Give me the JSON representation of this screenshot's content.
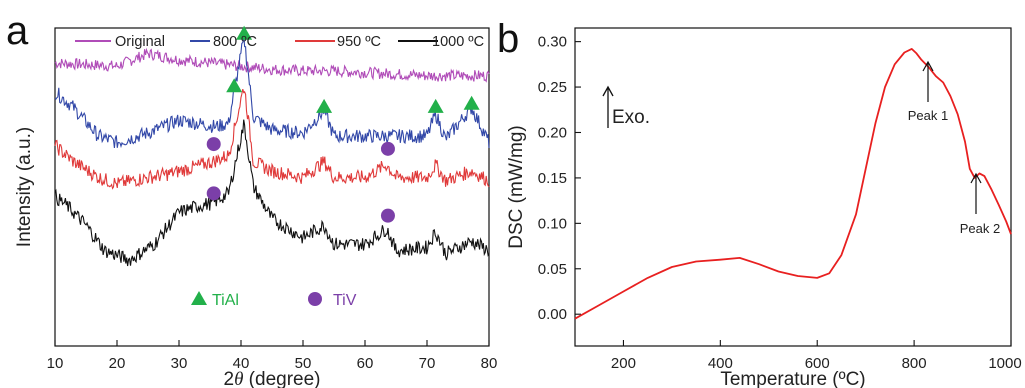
{
  "panels": {
    "a": {
      "panel_letter": "a",
      "xlabel_prefix": "2",
      "xlabel_theta": "θ",
      "xlabel_suffix": " (degree)",
      "ylabel": "Intensity  (a.u.)",
      "marker_legend": {
        "tial": "TiAl",
        "tiv": "TiV"
      },
      "colors": {
        "original": "#b04cb8",
        "800": "#3248a8",
        "950": "#e03a3a",
        "1000": "#111111",
        "tial_marker": "#22b04a",
        "tiv_marker": "#7b3fa8",
        "tial_text": "#22b04a",
        "tiv_text": "#7b3fa8"
      }
    },
    "b": {
      "panel_letter": "b",
      "exo_label": "Exo.",
      "peak1_label": "Peak 1",
      "peak2_label": "Peak 2",
      "colors": {
        "curve": "#e82020"
      }
    }
  },
  "chart_data": [
    {
      "type": "line",
      "title": "",
      "xlabel": "2θ (degree)",
      "ylabel": "Intensity  (a.u.)",
      "xlim": [
        10,
        80
      ],
      "x_ticks": [
        10,
        20,
        30,
        40,
        50,
        60,
        70,
        80
      ],
      "y_ticks": [],
      "grid": false,
      "legend_position": "top",
      "series": [
        {
          "name": "Original",
          "color": "#b04cb8",
          "offset": 0.86,
          "x": [
            10,
            20,
            25,
            30,
            35,
            40,
            45,
            50,
            55,
            60,
            65,
            70,
            75,
            80
          ],
          "y": [
            0.89,
            0.88,
            0.92,
            0.9,
            0.89,
            0.88,
            0.87,
            0.865,
            0.865,
            0.86,
            0.855,
            0.85,
            0.85,
            0.85
          ]
        },
        {
          "name": "800 ºC",
          "color": "#3248a8",
          "offset": 0.67,
          "x": [
            10,
            13,
            17,
            20,
            25,
            30,
            33,
            36,
            38,
            38.9,
            40.5,
            42,
            45,
            50,
            53.4,
            55,
            60,
            65,
            70,
            71.4,
            73,
            77.2,
            80
          ],
          "y": [
            0.8,
            0.75,
            0.66,
            0.64,
            0.67,
            0.71,
            0.7,
            0.69,
            0.7,
            0.8,
            0.97,
            0.72,
            0.68,
            0.67,
            0.74,
            0.66,
            0.66,
            0.66,
            0.66,
            0.73,
            0.65,
            0.75,
            0.64
          ]
        },
        {
          "name": "950 ºC",
          "color": "#e03a3a",
          "offset": 0.52,
          "x": [
            10,
            13,
            17,
            20,
            25,
            28,
            32,
            35.5,
            38,
            40.5,
            42,
            45,
            50,
            53.4,
            55,
            60,
            63.5,
            65,
            70,
            71.4,
            73,
            77.2,
            80
          ],
          "y": [
            0.63,
            0.58,
            0.53,
            0.51,
            0.53,
            0.54,
            0.56,
            0.58,
            0.6,
            0.82,
            0.58,
            0.55,
            0.53,
            0.58,
            0.53,
            0.53,
            0.57,
            0.53,
            0.53,
            0.57,
            0.52,
            0.55,
            0.52
          ]
        },
        {
          "name": "1000 ºC",
          "color": "#111111",
          "offset": 0.3,
          "x": [
            10,
            12,
            15,
            18,
            22,
            26,
            30,
            33,
            35.5,
            38,
            40.5,
            42,
            45,
            50,
            53.4,
            55,
            60,
            63.5,
            65,
            70,
            71.4,
            73,
            77.2,
            80
          ],
          "y": [
            0.47,
            0.44,
            0.38,
            0.3,
            0.27,
            0.32,
            0.42,
            0.44,
            0.45,
            0.48,
            0.7,
            0.5,
            0.4,
            0.34,
            0.38,
            0.32,
            0.32,
            0.37,
            0.3,
            0.31,
            0.36,
            0.29,
            0.33,
            0.3
          ]
        }
      ],
      "markers": [
        {
          "type": "TiAl",
          "x": 40.5,
          "level": 0.985
        },
        {
          "type": "TiAl",
          "x": 38.9,
          "level": 0.82
        },
        {
          "type": "TiAl",
          "x": 53.4,
          "level": 0.755
        },
        {
          "type": "TiAl",
          "x": 71.4,
          "level": 0.755
        },
        {
          "type": "TiAl",
          "x": 77.2,
          "level": 0.765
        },
        {
          "type": "TiV",
          "x": 35.6,
          "level": 0.635
        },
        {
          "type": "TiV",
          "x": 63.7,
          "level": 0.62
        },
        {
          "type": "TiV",
          "x": 35.6,
          "level": 0.48
        },
        {
          "type": "TiV",
          "x": 63.7,
          "level": 0.41
        }
      ]
    },
    {
      "type": "line",
      "title": "",
      "xlabel": "Temperature  (ºC)",
      "ylabel": "DSC (mW/mg)",
      "xlim": [
        100,
        1000
      ],
      "ylim": [
        -0.035,
        0.315
      ],
      "x_ticks": [
        200,
        400,
        600,
        800,
        1000
      ],
      "y_ticks": [
        "0.00",
        "0.05",
        "0.10",
        "0.15",
        "0.20",
        "0.25",
        "0.30"
      ],
      "grid": false,
      "series": [
        {
          "name": "",
          "color": "#e82020",
          "x": [
            100,
            150,
            200,
            250,
            300,
            350,
            400,
            440,
            480,
            520,
            560,
            600,
            625,
            650,
            680,
            700,
            720,
            740,
            760,
            780,
            795,
            805,
            815,
            830,
            845,
            860,
            875,
            890,
            905,
            915,
            925,
            935,
            945,
            960,
            975,
            990,
            1000
          ],
          "y": [
            -0.005,
            0.01,
            0.025,
            0.04,
            0.052,
            0.058,
            0.06,
            0.062,
            0.055,
            0.047,
            0.042,
            0.04,
            0.045,
            0.065,
            0.11,
            0.16,
            0.21,
            0.25,
            0.275,
            0.288,
            0.292,
            0.287,
            0.28,
            0.272,
            0.262,
            0.255,
            0.24,
            0.22,
            0.19,
            0.16,
            0.15,
            0.155,
            0.152,
            0.137,
            0.12,
            0.102,
            0.088
          ]
        }
      ],
      "annotations": [
        {
          "text": "Peak 1",
          "x": 825,
          "y": 0.255
        },
        {
          "text": "Peak 2",
          "x": 945,
          "y": 0.15
        }
      ]
    }
  ]
}
